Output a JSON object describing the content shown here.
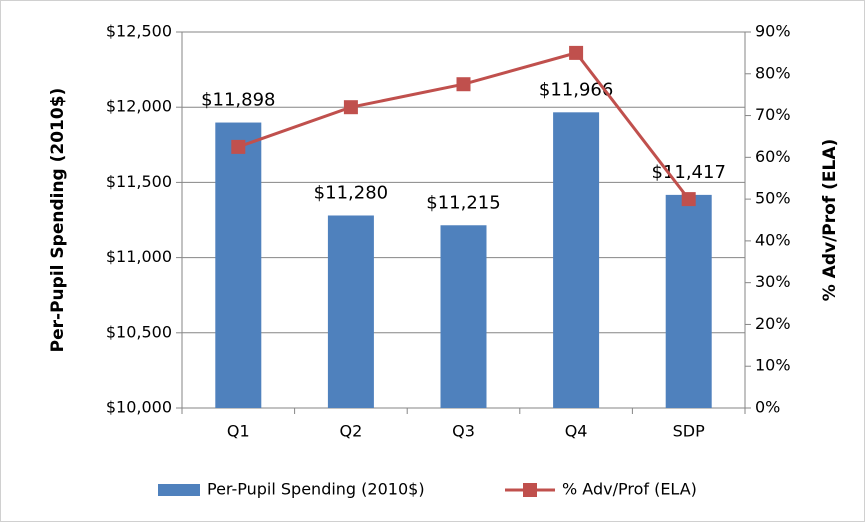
{
  "chart_data": {
    "type": "bar",
    "categories": [
      "Q1",
      "Q2",
      "Q3",
      "Q4",
      "SDP"
    ],
    "series": [
      {
        "name": "Per-Pupil Spending (2010$)",
        "type": "bar",
        "color": "#4f81bd",
        "values": [
          11898,
          11280,
          11215,
          11966,
          11417
        ],
        "value_labels": [
          "$11,898",
          "$11,280",
          "$11,215",
          "$11,966",
          "$11,417"
        ]
      },
      {
        "name": "% Adv/Prof (ELA)",
        "type": "line",
        "axis": "y2",
        "color": "#c0504d",
        "values": [
          62.5,
          72,
          77.5,
          85,
          50
        ]
      }
    ],
    "ylabel": "Per-Pupil Spending (2010$)",
    "y2label": "% Adv/Prof (ELA)",
    "ylim": [
      10000,
      12500
    ],
    "yticks": [
      {
        "value": 10000,
        "label": "$10,000"
      },
      {
        "value": 10500,
        "label": "$10,500"
      },
      {
        "value": 11000,
        "label": "$11,000"
      },
      {
        "value": 11500,
        "label": "$11,500"
      },
      {
        "value": 12000,
        "label": "$12,000"
      },
      {
        "value": 12500,
        "label": "$12,500"
      }
    ],
    "y2lim": [
      0,
      90
    ],
    "y2ticks": [
      {
        "value": 0,
        "label": "0%"
      },
      {
        "value": 10,
        "label": "10%"
      },
      {
        "value": 20,
        "label": "20%"
      },
      {
        "value": 30,
        "label": "30%"
      },
      {
        "value": 40,
        "label": "40%"
      },
      {
        "value": 50,
        "label": "50%"
      },
      {
        "value": 60,
        "label": "60%"
      },
      {
        "value": 70,
        "label": "70%"
      },
      {
        "value": 80,
        "label": "80%"
      },
      {
        "value": 90,
        "label": "90%"
      }
    ],
    "grid": true,
    "legend": "bottom"
  }
}
